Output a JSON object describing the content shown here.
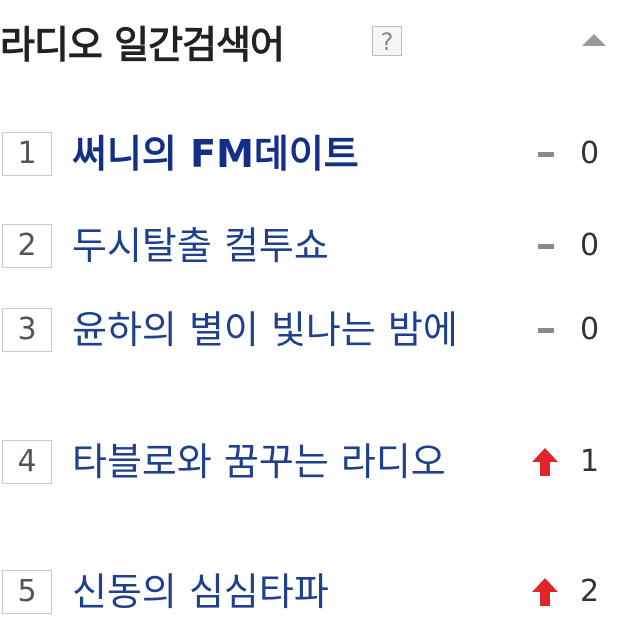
{
  "widget": {
    "title": "라디오 일간검색어",
    "help_label": "?",
    "collapse_icon": "triangle-up-icon"
  },
  "ranking": [
    {
      "rank": "1",
      "name": "써니의 FM데이트",
      "change_type": "same",
      "change": "0"
    },
    {
      "rank": "2",
      "name": "두시탈출 컬투쇼",
      "change_type": "same",
      "change": "0"
    },
    {
      "rank": "3",
      "name": "윤하의 별이 빛나는 밤에",
      "change_type": "same",
      "change": "0"
    },
    {
      "rank": "4",
      "name": "타블로와 꿈꾸는 라디오",
      "change_type": "up",
      "change": "1"
    },
    {
      "rank": "5",
      "name": "신동의 심심타파",
      "change_type": "up",
      "change": "2"
    }
  ],
  "colors": {
    "link_blue": "#1f3f8f",
    "up_red": "#e0262b",
    "same_gray": "#8a8a8a"
  }
}
